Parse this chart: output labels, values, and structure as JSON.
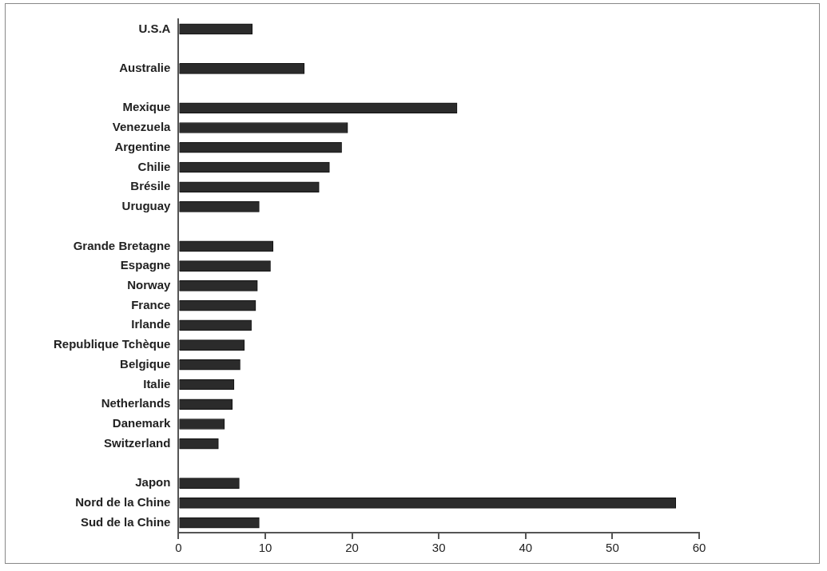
{
  "chart_data": {
    "type": "bar",
    "orientation": "horizontal",
    "categories": [
      "U.S.A",
      null,
      "Australie",
      null,
      "Mexique",
      "Venezuela",
      "Argentine",
      "Chilie",
      "Brésile",
      "Uruguay",
      null,
      "Grande Bretagne",
      "Espagne",
      "Norway",
      "France",
      "Irlande",
      "Republique Tchèque",
      "Belgique",
      "Italie",
      "Netherlands",
      "Danemark",
      "Switzerland",
      null,
      "Japon",
      "Nord de la Chine",
      "Sud de la Chine"
    ],
    "values": [
      8.5,
      null,
      14.5,
      null,
      32.1,
      19.5,
      18.8,
      17.4,
      16.2,
      9.3,
      null,
      10.9,
      10.6,
      9.1,
      8.9,
      8.4,
      7.6,
      7.1,
      6.4,
      6.2,
      5.3,
      4.6,
      null,
      7.0,
      57.3,
      9.3
    ],
    "color": "#2b2b2b",
    "xlim": [
      0,
      60
    ],
    "xticks": [
      0,
      10,
      20,
      30,
      40,
      50,
      60
    ],
    "grid": false,
    "legend": false
  }
}
